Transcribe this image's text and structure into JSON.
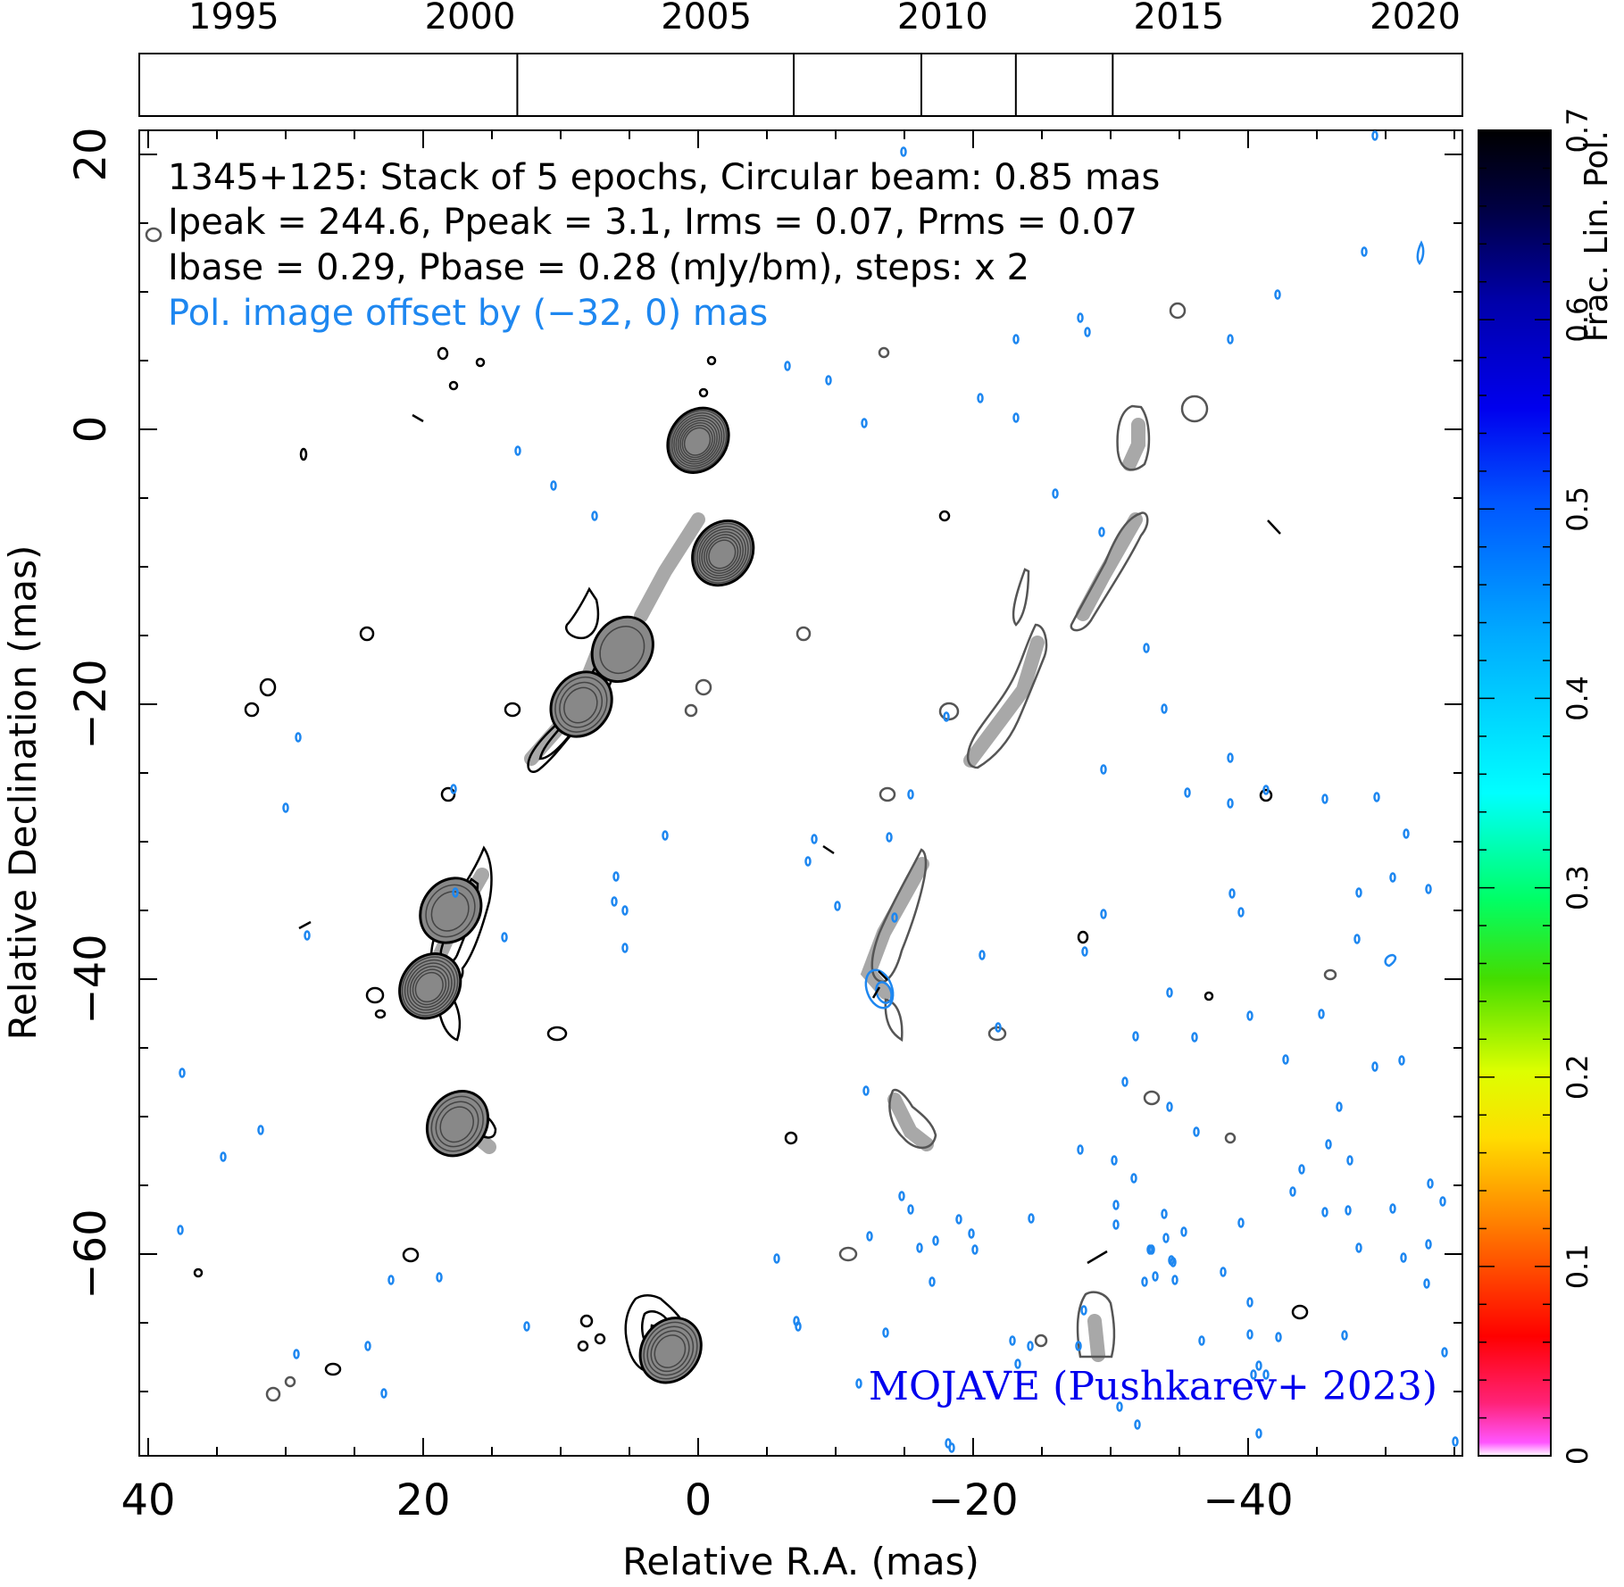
{
  "chart_data": {
    "type": "contour",
    "header": {
      "line1": "1345+125: Stack of 5 epochs, Circular beam: 0.85 mas",
      "line2": "Ipeak = 244.6, Ppeak = 3.1, Irms = 0.07, Prms = 0.07",
      "line3": "Ibase = 0.29, Pbase = 0.28 (mJy/bm), steps: x 2",
      "line4": "Pol. image offset by (−32, 0) mas"
    },
    "credit": "MOJAVE (Pushkarev+ 2023)",
    "xlabel": "Relative R.A. (mas)",
    "ylabel": "Relative Declination (mas)",
    "xlim": [
      40,
      -56
    ],
    "ylim": [
      -75,
      22
    ],
    "xticks": [
      40,
      20,
      0,
      -20,
      -40
    ],
    "xtick_labels": [
      "40",
      "20",
      "0",
      "−20",
      "−40"
    ],
    "yticks": [
      20,
      0,
      -20,
      -40,
      -60
    ],
    "ytick_labels": [
      "20",
      "0",
      "−20",
      "−40",
      "−60"
    ],
    "timeline": {
      "range": [
        1993,
        2021
      ],
      "tick_years": [
        1995,
        2000,
        2005,
        2010,
        2015,
        2020
      ],
      "tick_labels": [
        "1995",
        "2000",
        "2005",
        "2010",
        "2015",
        "2020"
      ],
      "epochs": [
        2001.0,
        2006.85,
        2009.55,
        2011.55,
        2013.6
      ]
    },
    "colorbar": {
      "label": "Frac. Lin. Pol.",
      "range": [
        0,
        0.7
      ],
      "ticks": [
        0,
        0.1,
        0.2,
        0.3,
        0.4,
        0.5,
        0.6,
        0.7
      ],
      "tick_labels": [
        "0",
        "0.1",
        "0.2",
        "0.3",
        "0.4",
        "0.5",
        "0.6",
        "0.7"
      ]
    },
    "colors": {
      "total_intensity": "#000000",
      "polarization_offset": "#555555",
      "ridge": "#a8a8a8",
      "noise_blue": "#1e87f0",
      "credit": "#0000ee"
    },
    "total_intensity_components": [
      {
        "ra": 0.0,
        "dec": -0.8,
        "levels": 9
      },
      {
        "ra": -1.8,
        "dec": -9.0,
        "levels": 8
      },
      {
        "ra": 5.5,
        "dec": -16.0,
        "levels": 2
      },
      {
        "ra": 8.5,
        "dec": -20.0,
        "levels": 4
      },
      {
        "ra": 19.5,
        "dec": -40.5,
        "levels": 7
      },
      {
        "ra": 18.0,
        "dec": -35.0,
        "levels": 3
      },
      {
        "ra": 17.5,
        "dec": -50.5,
        "levels": 4
      },
      {
        "ra": 2.0,
        "dec": -67.0,
        "levels": 5
      }
    ]
  }
}
